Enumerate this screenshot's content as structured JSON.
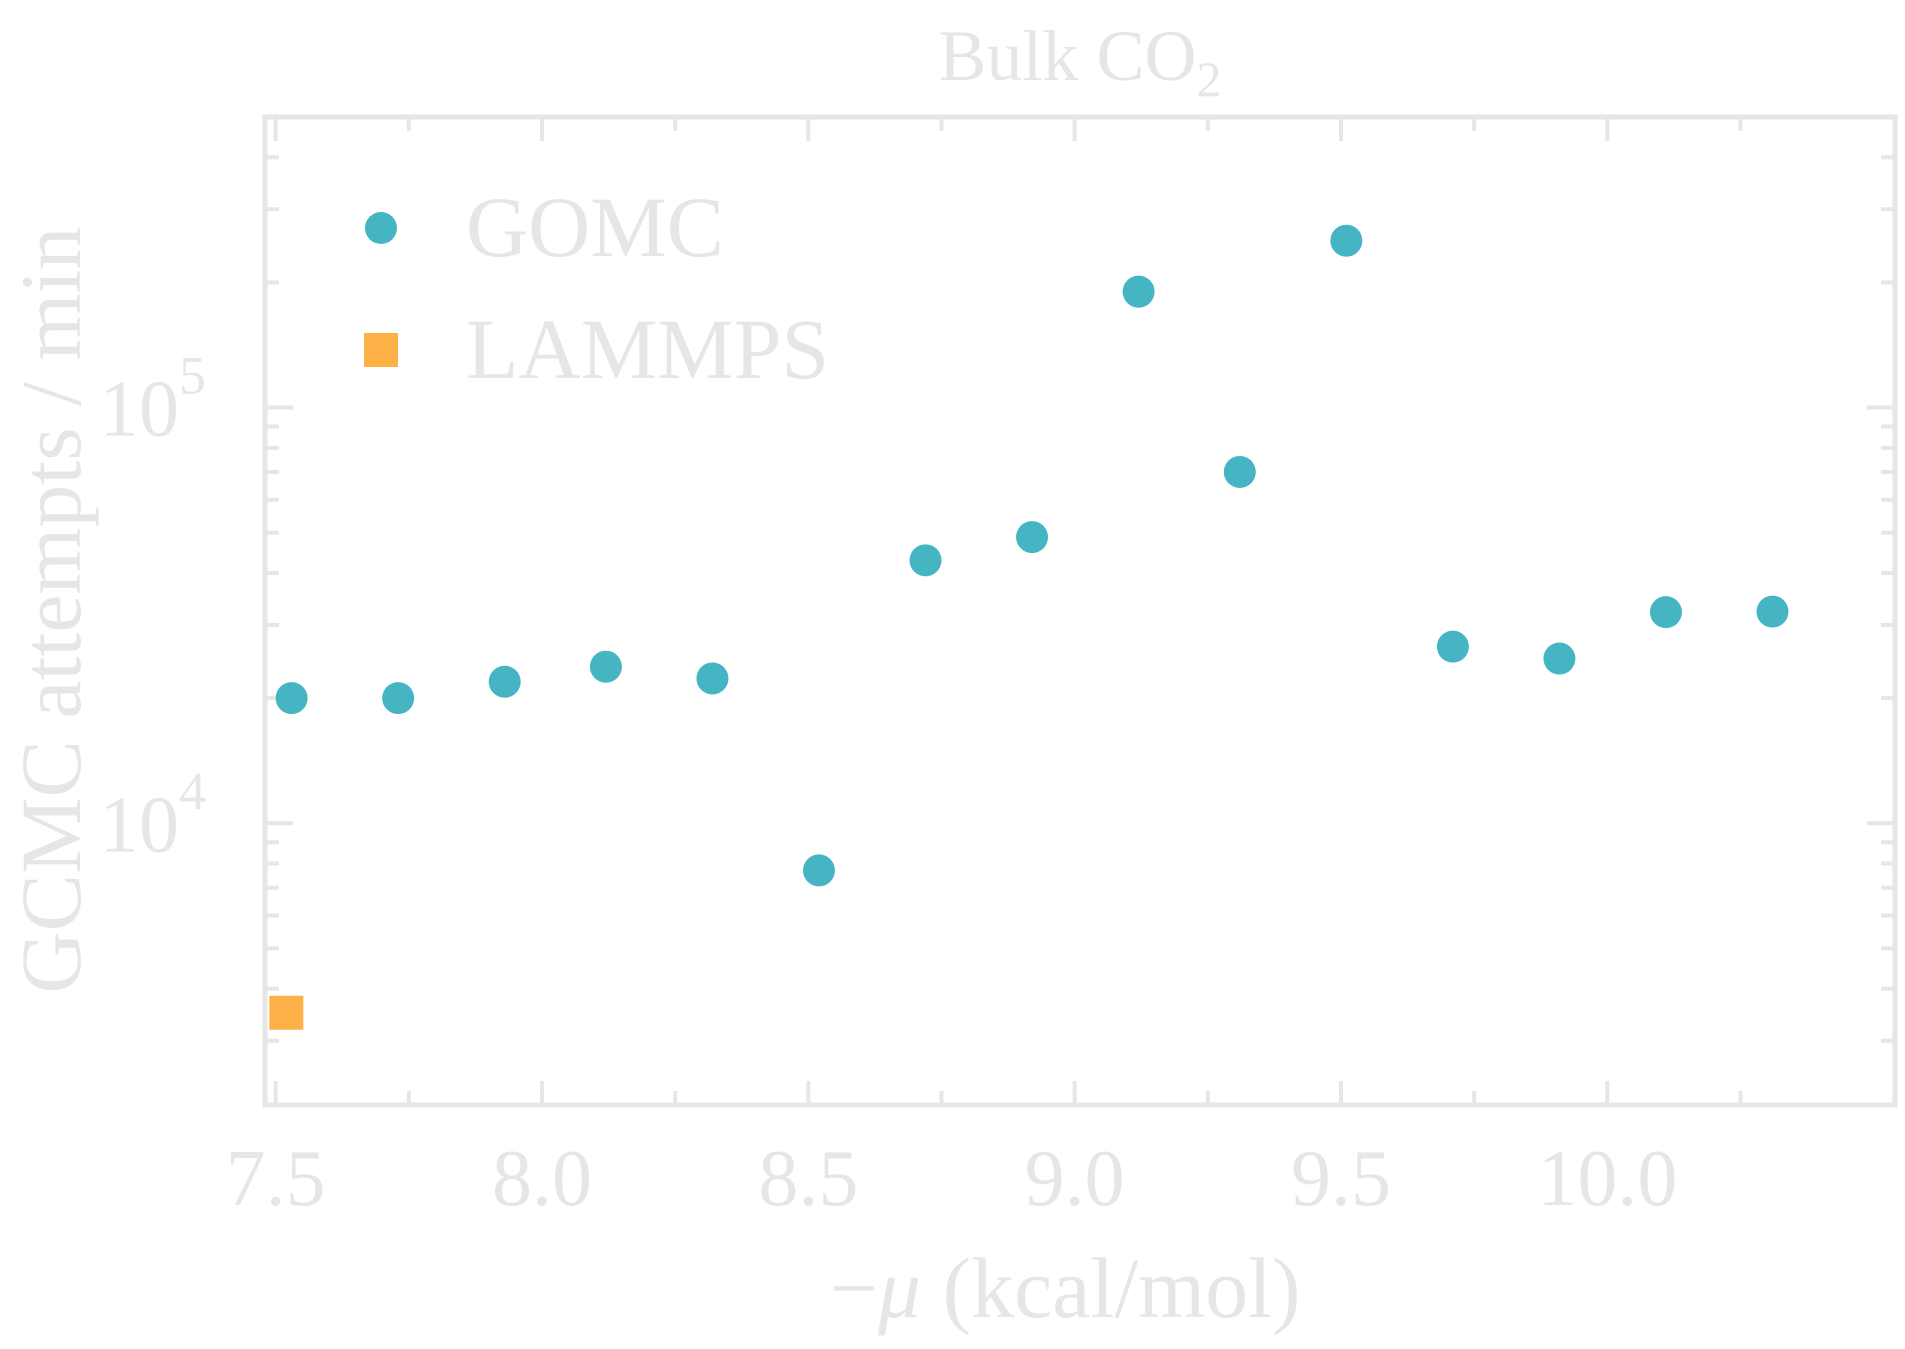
{
  "chart_data": {
    "type": "scatter",
    "title": "Bulk CO",
    "title_subscript": "2",
    "xlabel_prefix": "−",
    "xlabel_symbol": "μ",
    "xlabel_suffix": " (kcal/mol)",
    "ylabel": "GCMC attempts / min",
    "xlim": [
      7.48,
      10.54
    ],
    "ylim": [
      2100,
      500000
    ],
    "yscale": "log",
    "grid": false,
    "legend_position": "top-left",
    "x_ticks": [
      "7.5",
      "8.0",
      "8.5",
      "9.0",
      "9.5",
      "10.0"
    ],
    "y_ticks": [
      {
        "base": "10",
        "exponent": "4"
      },
      {
        "base": "10",
        "exponent": "5"
      }
    ],
    "series": [
      {
        "name": "GOMC",
        "marker": "circle",
        "color": "#45b5c4",
        "x": [
          7.53,
          7.73,
          7.93,
          8.12,
          8.32,
          8.52,
          8.72,
          8.92,
          9.12,
          9.31,
          9.51,
          9.71,
          9.91,
          10.11,
          10.31
        ],
        "y": [
          20000,
          20000,
          21900,
          23800,
          22300,
          7700,
          42900,
          48800,
          190000,
          70000,
          252000,
          26600,
          24900,
          32200,
          32300
        ]
      },
      {
        "name": "LAMMPS",
        "marker": "square",
        "color": "#fdb045",
        "x": [
          7.52
        ],
        "y": [
          3500
        ]
      }
    ]
  }
}
